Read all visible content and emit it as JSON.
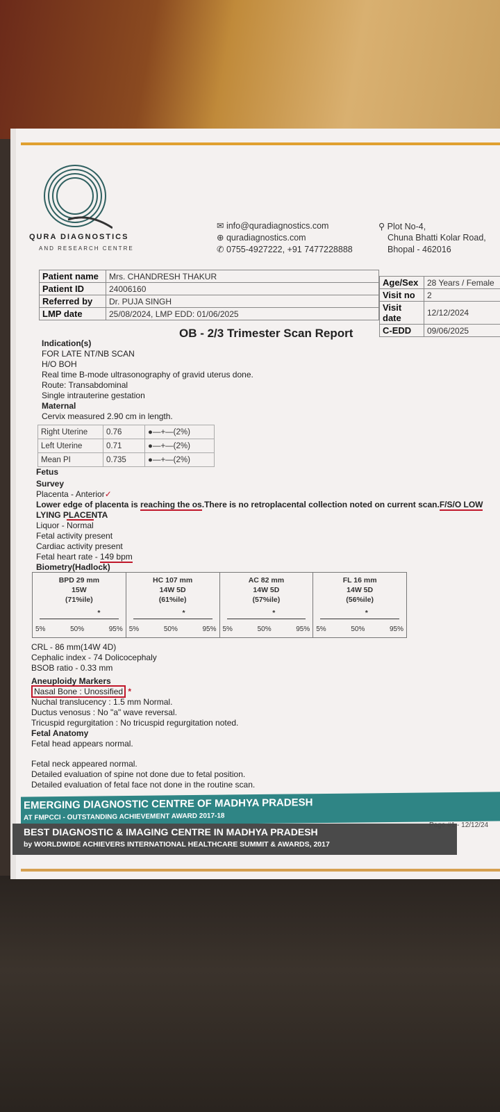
{
  "header": {
    "brand": "QURA DIAGNOSTICS",
    "brand_sub": "AND RESEARCH CENTRE",
    "email": "info@quradiagnostics.com",
    "website": "quradiagnostics.com",
    "phone": "0755-4927222, +91 7477228888",
    "address1": "Plot No-4,",
    "address2": "Chuna Bhatti Kolar Road,",
    "address3": "Bhopal - 462016"
  },
  "patient": {
    "name_label": "Patient name",
    "name": "Mrs. CHANDRESH THAKUR",
    "id_label": "Patient ID",
    "id": "24006160",
    "ref_label": "Referred by",
    "ref": "Dr. PUJA SINGH",
    "lmp_label": "LMP date",
    "lmp": "25/08/2024, LMP EDD: 01/06/2025",
    "age_label": "Age/Sex",
    "age": "28 Years / Female",
    "visit_label": "Visit no",
    "visit": "2",
    "vdate_label": "Visit date",
    "vdate": "12/12/2024",
    "cedd_label": "C-EDD",
    "cedd": "09/06/2025"
  },
  "report": {
    "title": "OB - 2/3 Trimester Scan Report",
    "indication_h": "Indication(s)",
    "ind1": "FOR LATE NT/NB SCAN",
    "ind2": "H/O BOH",
    "l1": "Real time B-mode ultrasonography of gravid uterus done.",
    "l2": "Route: Transabdominal",
    "l3": "Single intrauterine gestation",
    "maternal_h": "Maternal",
    "cervix": "Cervix measured 2.90 cm in length.",
    "pi": [
      {
        "label": "Right Uterine",
        "value": "0.76",
        "pct": "(2%)"
      },
      {
        "label": "Left Uterine",
        "value": "0.71",
        "pct": "(2%)"
      },
      {
        "label": "Mean PI",
        "value": "0.735",
        "pct": "(2%)"
      }
    ],
    "fetus_h": "Fetus",
    "survey_h": "Survey",
    "placenta": "Placenta - Anterior",
    "lower_edge_a": "Lower edge of placenta is ",
    "lower_edge_b": "reaching the os",
    "lower_edge_c": ".There is no retroplacental collection noted on current scan.",
    "lower_edge_d": "F/S/O LOW",
    "lying": "LYING PLACENTA",
    "liquor_a": "Liquor - ",
    "liquor_b": "Normal",
    "activity": "Fetal activity present",
    "cardiac": "Cardiac activity present",
    "fhr_a": "Fetal heart rate - ",
    "fhr_b": "149 bpm",
    "biometry_h": "Biometry(Hadlock)",
    "biometry": [
      {
        "m": "BPD 29 mm",
        "ga": "15W",
        "p": "(71%ile)",
        "pct": 71
      },
      {
        "m": "HC 107 mm",
        "ga": "14W 5D",
        "p": "(61%ile)",
        "pct": 61
      },
      {
        "m": "AC 82 mm",
        "ga": "14W 5D",
        "p": "(57%ile)",
        "pct": 57
      },
      {
        "m": "FL 16 mm",
        "ga": "14W 5D",
        "p": "(56%ile)",
        "pct": 56
      }
    ],
    "scale": {
      "a": "5%",
      "b": "50%",
      "c": "95%"
    },
    "crl": "CRL - 86 mm(14W 4D)",
    "ci": "Cephalic index - 74 Dolicocephaly",
    "bsob": "BSOB ratio - 0.33  mm",
    "aneu_h": "Aneuploidy Markers",
    "nasal": "Nasal Bone : Unossified",
    "nt": "Nuchal translucency : 1.5 mm Normal.",
    "dv": "Ductus venosus : No \"a\" wave reversal.",
    "tr": "Tricuspid regurgitation : No tricuspid regurgitation noted.",
    "anat_h": "Fetal Anatomy",
    "head": "Fetal head appears normal.",
    "neck": "Fetal neck appeared normal.",
    "spine": "Detailed evaluation of spine not done due to fetal position.",
    "face": "Detailed evaluation of fetal face not done in the routine scan."
  },
  "footer": {
    "b1": "EMERGING DIAGNOSTIC CENTRE OF MADHYA PRADESH",
    "b1s": "AT FMPCCI - OUTSTANDING ACHIEVEMENT AWARD 2017-18",
    "b2": "BEST DIAGNOSTIC & IMAGING CENTRE IN MADHYA PRADESH",
    "b2s": "by WORLDWIDE ACHIEVERS INTERNATIONAL HEALTHCARE SUMMIT & AWARDS, 2017",
    "page": "Page #1 - 12/12/24"
  }
}
